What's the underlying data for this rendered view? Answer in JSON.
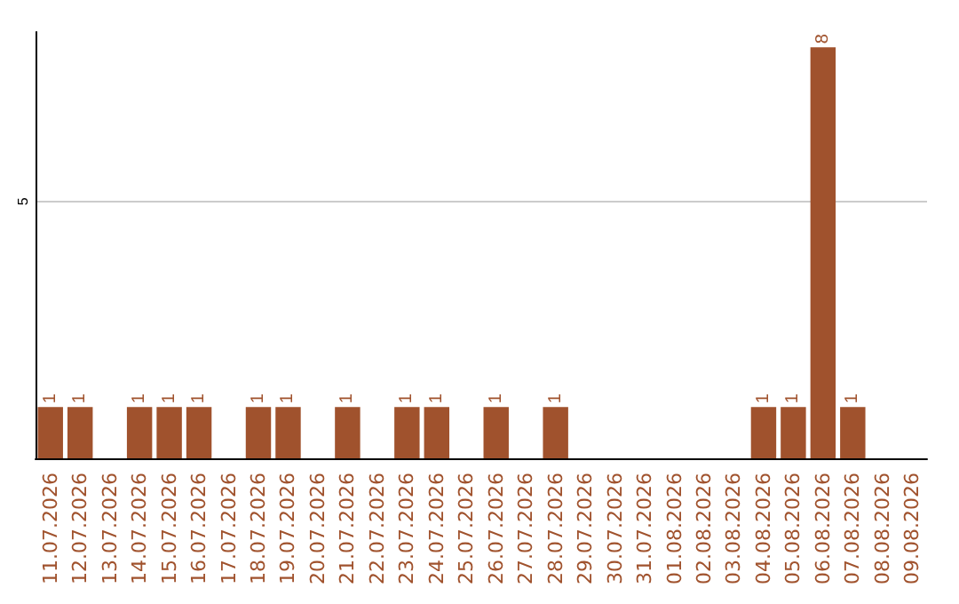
{
  "chart_data": {
    "type": "bar",
    "categories": [
      "11.07.2026",
      "12.07.2026",
      "13.07.2026",
      "14.07.2026",
      "15.07.2026",
      "16.07.2026",
      "17.07.2026",
      "18.07.2026",
      "19.07.2026",
      "20.07.2026",
      "21.07.2026",
      "22.07.2026",
      "23.07.2026",
      "24.07.2026",
      "25.07.2026",
      "26.07.2026",
      "27.07.2026",
      "28.07.2026",
      "29.07.2026",
      "30.07.2026",
      "31.07.2026",
      "01.08.2026",
      "02.08.2026",
      "03.08.2026",
      "04.08.2026",
      "05.08.2026",
      "06.08.2026",
      "07.08.2026",
      "08.08.2026",
      "09.08.2026"
    ],
    "values": [
      1,
      1,
      0,
      1,
      1,
      1,
      0,
      1,
      1,
      0,
      1,
      0,
      1,
      1,
      0,
      1,
      0,
      1,
      0,
      0,
      0,
      0,
      0,
      0,
      1,
      1,
      8,
      1,
      0,
      0
    ],
    "value_labels": [
      "1",
      "1",
      null,
      "1",
      "1",
      "1",
      null,
      "1",
      "1",
      null,
      "1",
      null,
      "1",
      "1",
      null,
      "1",
      null,
      "1",
      null,
      null,
      null,
      null,
      null,
      null,
      "1",
      "1",
      "8",
      "1",
      null,
      null
    ],
    "color": "#a0522d",
    "ylim": [
      0,
      8.3
    ],
    "yticks": [
      5
    ],
    "grid": "y"
  }
}
